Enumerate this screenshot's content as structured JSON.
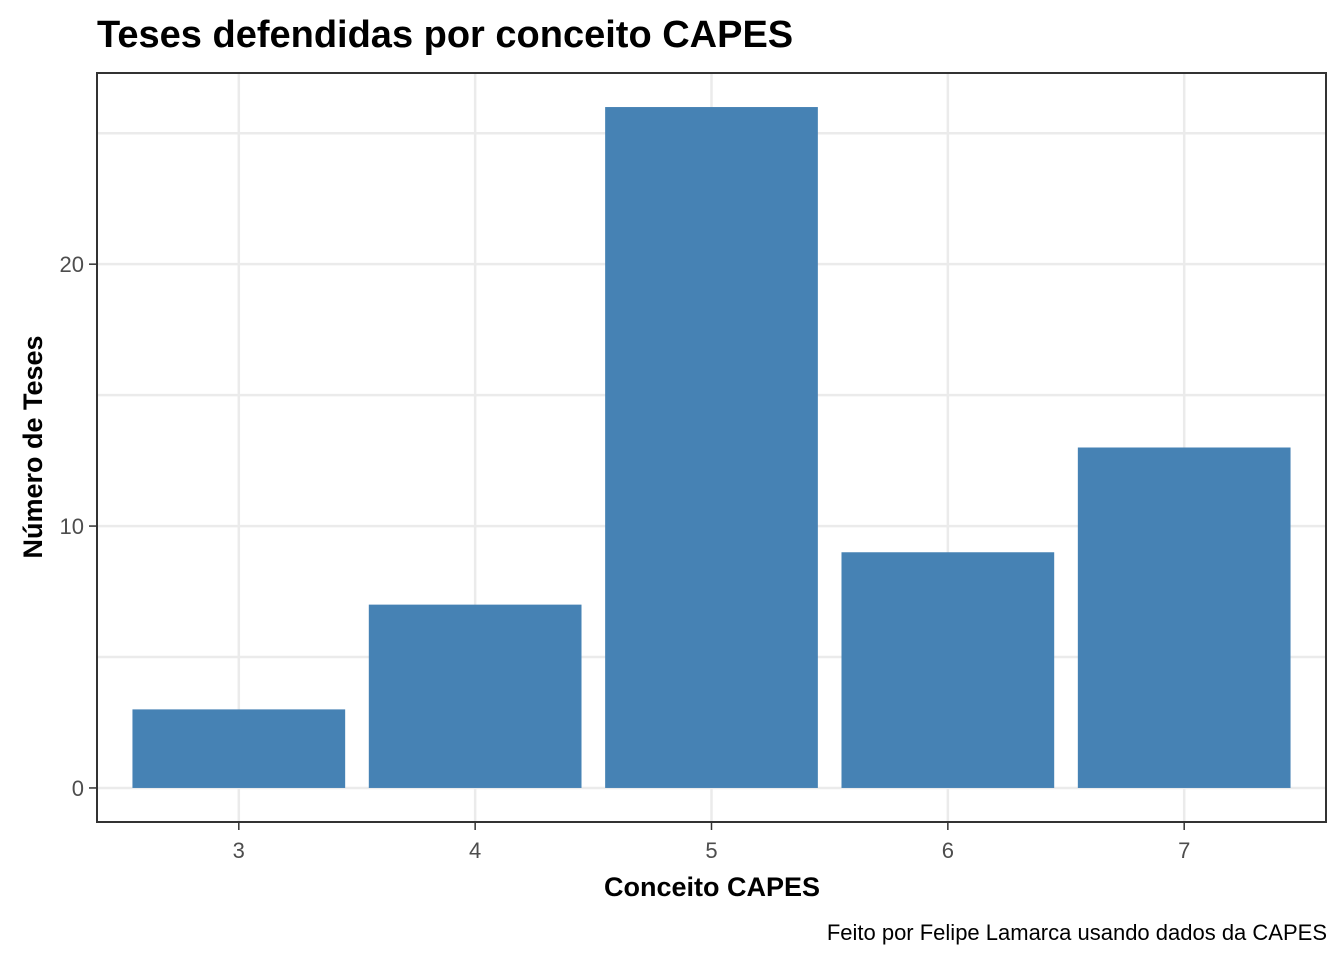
{
  "chart_data": {
    "type": "bar",
    "title": "Teses defendidas por conceito CAPES",
    "xlabel": "Conceito CAPES",
    "ylabel": "Número de Teses",
    "caption": "Feito por Felipe Lamarca usando dados da CAPES",
    "categories": [
      "3",
      "4",
      "5",
      "6",
      "7"
    ],
    "values": [
      3,
      7,
      26,
      9,
      13
    ],
    "ylim": [
      -1.3,
      27.3
    ],
    "yticks": [
      0,
      10,
      20
    ],
    "grid": true,
    "legend": "none",
    "bar_color": "#4682B4"
  }
}
